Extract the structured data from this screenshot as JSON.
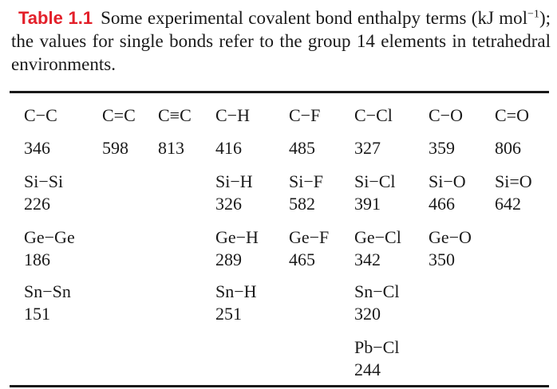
{
  "caption": {
    "label": "Table 1.1",
    "text_before_sup": "Some experimental covalent bond enthalpy terms (kJ mol",
    "superscript": "−1",
    "text_after_sup": "); the values for single bonds refer to the group 14 elements in tetrahedral environments."
  },
  "table": {
    "rows": [
      [
        {
          "bond": "C−C",
          "value": "346"
        },
        {
          "bond": "C=C",
          "value": "598"
        },
        {
          "bond": "C≡C",
          "value": "813"
        },
        {
          "bond": "C−H",
          "value": "416"
        },
        {
          "bond": "C−F",
          "value": "485"
        },
        {
          "bond": "C−Cl",
          "value": "327"
        },
        {
          "bond": "C−O",
          "value": "359"
        },
        {
          "bond": "C=O",
          "value": "806"
        }
      ],
      [
        {
          "bond": "Si−Si",
          "value": "226"
        },
        null,
        null,
        {
          "bond": "Si−H",
          "value": "326"
        },
        {
          "bond": "Si−F",
          "value": "582"
        },
        {
          "bond": "Si−Cl",
          "value": "391"
        },
        {
          "bond": "Si−O",
          "value": "466"
        },
        {
          "bond": "Si=O",
          "value": "642"
        }
      ],
      [
        {
          "bond": "Ge−Ge",
          "value": "186"
        },
        null,
        null,
        {
          "bond": "Ge−H",
          "value": "289"
        },
        {
          "bond": "Ge−F",
          "value": "465"
        },
        {
          "bond": "Ge−Cl",
          "value": "342"
        },
        {
          "bond": "Ge−O",
          "value": "350"
        },
        null
      ],
      [
        {
          "bond": "Sn−Sn",
          "value": "151"
        },
        null,
        null,
        {
          "bond": "Sn−H",
          "value": "251"
        },
        null,
        {
          "bond": "Sn−Cl",
          "value": "320"
        },
        null,
        null
      ],
      [
        null,
        null,
        null,
        null,
        null,
        {
          "bond": "Pb−Cl",
          "value": "244"
        },
        null,
        null
      ]
    ]
  },
  "colors": {
    "label": "#e3202a",
    "text": "#1a1a1a"
  }
}
